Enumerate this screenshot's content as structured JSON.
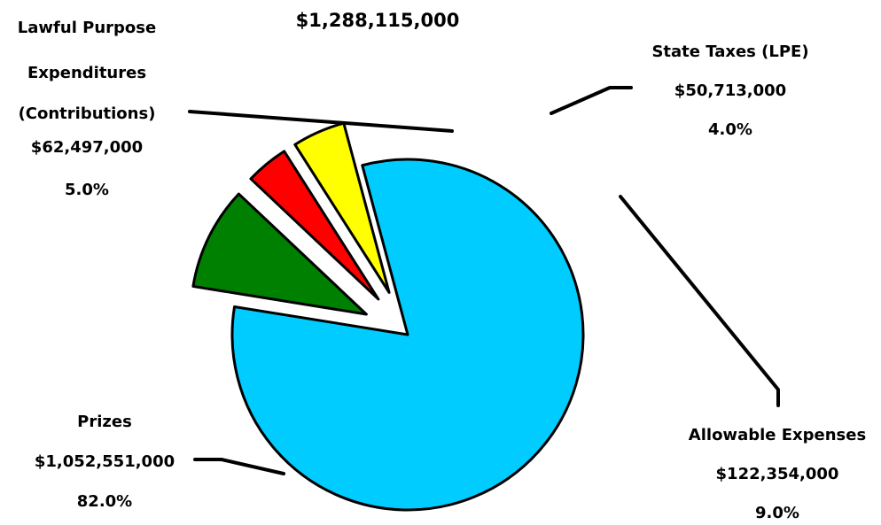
{
  "chart_data": {
    "type": "pie",
    "title": "$1,288,115,000",
    "slices": [
      {
        "name": "Prizes",
        "lines": [
          "Prizes",
          "$1,052,551,000",
          "82.0%"
        ],
        "value": 1052551000,
        "percent": 82.0,
        "color": "#00CCFF",
        "exploded": false
      },
      {
        "name": "Allowable Expenses",
        "lines": [
          "Allowable Expenses",
          "$122,354,000",
          "9.0%"
        ],
        "value": 122354000,
        "percent": 9.0,
        "color": "#008000",
        "exploded": true
      },
      {
        "name": "State Taxes (LPE)",
        "lines": [
          "State Taxes (LPE)",
          "$50,713,000",
          "4.0%"
        ],
        "value": 50713000,
        "percent": 4.0,
        "color": "#FF0000",
        "exploded": true
      },
      {
        "name": "Lawful Purpose Expenditures (Contributions)",
        "lines": [
          "Lawful Purpose",
          "Expenditures",
          "(Contributions)",
          "$62,497,000",
          "5.0%"
        ],
        "value": 62497000,
        "percent": 5.0,
        "color": "#FFFF00",
        "exploded": true
      }
    ],
    "legend": "none"
  }
}
